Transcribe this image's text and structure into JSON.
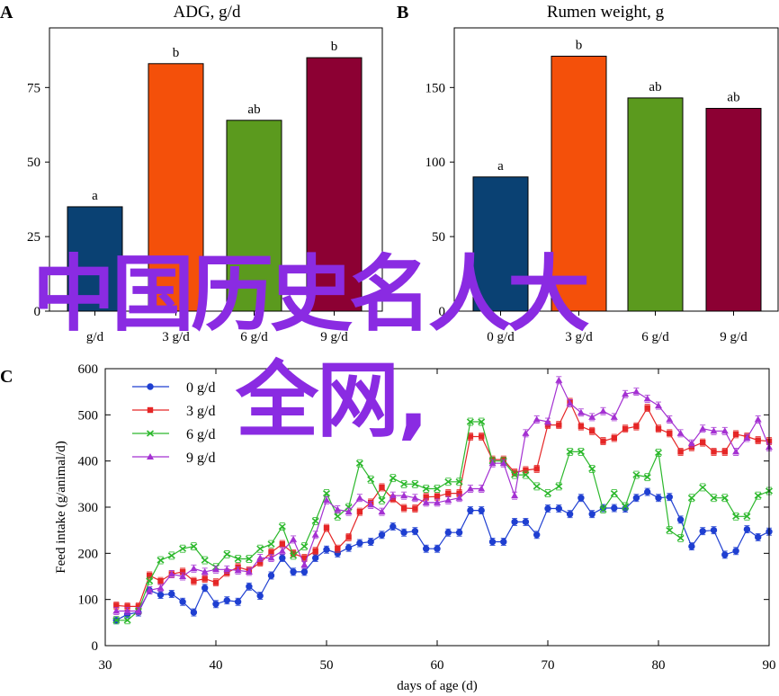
{
  "colors": {
    "zero": "#0a4173",
    "three": "#f4500a",
    "six": "#5b9a1e",
    "nine": "#8c0033",
    "line0": "#1f3fd1",
    "line3": "#e52626",
    "line6": "#2cb82c",
    "line9": "#a431d2",
    "watermark": "#8a2be2"
  },
  "watermark": {
    "line1": "中国历史名人大",
    "line2": "全网,"
  },
  "chart_data": [
    {
      "id": "A",
      "type": "bar",
      "panel_label": "A",
      "title": "ADG, g/d",
      "categories": [
        "0 g/d",
        "3 g/d",
        "6 g/d",
        "9 g/d"
      ],
      "visible_category_text": [
        "g/d",
        "3 g/d",
        "6 g/d",
        "9 g/d"
      ],
      "values": [
        35,
        83,
        64,
        85
      ],
      "letters": [
        "a",
        "b",
        "ab",
        "b"
      ],
      "ylim": [
        0,
        95
      ],
      "yticks": [
        0,
        25,
        50,
        75
      ],
      "ytick_labels": [
        "0",
        "25",
        "50",
        "75"
      ],
      "xlabel": "",
      "ylabel": ""
    },
    {
      "id": "B",
      "type": "bar",
      "panel_label": "B",
      "title": "Rumen weight, g",
      "categories": [
        "0 g/d",
        "3 g/d",
        "6 g/d",
        "9 g/d"
      ],
      "visible_category_text": [
        "0 g/d",
        "3 g/d",
        "6 g/d",
        "9 g/d"
      ],
      "values": [
        90,
        171,
        143,
        136
      ],
      "letters": [
        "a",
        "b",
        "ab",
        "ab"
      ],
      "ylim": [
        0,
        190
      ],
      "yticks": [
        0,
        50,
        100,
        150
      ],
      "ytick_labels": [
        "0",
        "50",
        "100",
        "150"
      ],
      "xlabel": "",
      "ylabel": ""
    },
    {
      "id": "C",
      "type": "line",
      "panel_label": "C",
      "title": "",
      "xlabel": "days of age (d)",
      "ylabel": "Feed intake (g/animal/d)",
      "xlim": [
        30,
        90
      ],
      "ylim": [
        0,
        600
      ],
      "xticks": [
        30,
        40,
        50,
        60,
        70,
        80,
        90
      ],
      "yticks": [
        0,
        100,
        200,
        300,
        400,
        500,
        600
      ],
      "legend_position": "top-left",
      "x": [
        31,
        32,
        33,
        34,
        35,
        36,
        37,
        38,
        39,
        40,
        41,
        42,
        43,
        44,
        45,
        46,
        47,
        48,
        49,
        50,
        51,
        52,
        53,
        54,
        55,
        56,
        57,
        58,
        59,
        60,
        61,
        62,
        63,
        64,
        65,
        66,
        67,
        68,
        69,
        70,
        71,
        72,
        73,
        74,
        75,
        76,
        77,
        78,
        79,
        80,
        81,
        82,
        83,
        84,
        85,
        86,
        87,
        88,
        89,
        90
      ],
      "series": [
        {
          "name": "0 g/d",
          "marker": "circle",
          "values": [
            55,
            68,
            72,
            120,
            110,
            112,
            95,
            72,
            125,
            90,
            98,
            95,
            128,
            108,
            152,
            190,
            160,
            160,
            190,
            208,
            200,
            212,
            222,
            225,
            240,
            258,
            245,
            248,
            210,
            210,
            245,
            245,
            293,
            293,
            225,
            225,
            268,
            268,
            240,
            297,
            297,
            285,
            320,
            285,
            298,
            298,
            297,
            320,
            333,
            320,
            322,
            273,
            215,
            248,
            250,
            197,
            205,
            252,
            235,
            247
          ]
        },
        {
          "name": "3 g/d",
          "marker": "square",
          "values": [
            87,
            85,
            85,
            152,
            140,
            155,
            160,
            140,
            145,
            137,
            158,
            170,
            163,
            180,
            202,
            220,
            200,
            190,
            205,
            255,
            210,
            235,
            290,
            310,
            343,
            318,
            298,
            297,
            322,
            323,
            330,
            330,
            453,
            453,
            403,
            403,
            375,
            380,
            383,
            478,
            478,
            528,
            475,
            465,
            443,
            450,
            470,
            475,
            515,
            470,
            460,
            420,
            430,
            440,
            420,
            420,
            458,
            453,
            445,
            443
          ]
        },
        {
          "name": "6 g/d",
          "marker": "cross",
          "values": [
            55,
            55,
            75,
            140,
            185,
            195,
            210,
            215,
            185,
            170,
            198,
            188,
            188,
            210,
            220,
            258,
            195,
            215,
            270,
            330,
            280,
            300,
            395,
            360,
            315,
            363,
            350,
            350,
            340,
            340,
            355,
            355,
            485,
            485,
            400,
            400,
            370,
            370,
            345,
            330,
            345,
            420,
            420,
            383,
            295,
            330,
            302,
            370,
            365,
            418,
            250,
            233,
            320,
            343,
            320,
            320,
            280,
            280,
            325,
            335
          ]
        },
        {
          "name": "9 g/d",
          "marker": "triangle",
          "values": [
            75,
            75,
            75,
            120,
            125,
            155,
            150,
            167,
            160,
            165,
            165,
            163,
            160,
            190,
            190,
            205,
            230,
            175,
            240,
            315,
            295,
            290,
            320,
            305,
            290,
            325,
            325,
            320,
            310,
            310,
            315,
            320,
            340,
            340,
            395,
            395,
            325,
            460,
            490,
            485,
            575,
            525,
            505,
            495,
            508,
            495,
            545,
            550,
            535,
            520,
            490,
            460,
            438,
            470,
            465,
            465,
            420,
            450,
            490,
            430
          ]
        }
      ]
    }
  ]
}
